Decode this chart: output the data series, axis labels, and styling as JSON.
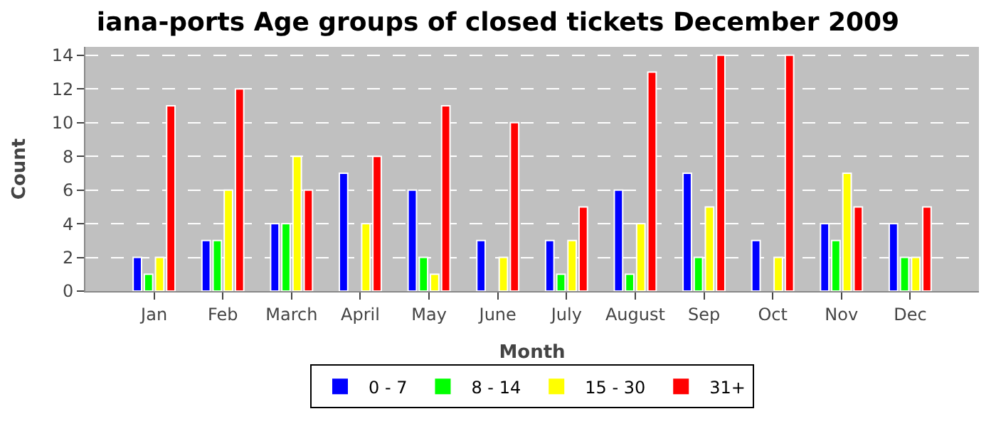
{
  "chart_data": {
    "type": "bar",
    "title": "iana-ports Age groups of closed tickets December 2009",
    "xlabel": "Month",
    "ylabel": "Count",
    "categories": [
      "Jan",
      "Feb",
      "March",
      "April",
      "May",
      "June",
      "July",
      "August",
      "Sep",
      "Oct",
      "Nov",
      "Dec"
    ],
    "series": [
      {
        "name": "0 - 7",
        "color": "#0000ff",
        "values": [
          2,
          3,
          4,
          7,
          6,
          3,
          3,
          6,
          7,
          3,
          4,
          4
        ]
      },
      {
        "name": "8 - 14",
        "color": "#00ff00",
        "values": [
          1,
          3,
          4,
          0,
          2,
          0,
          1,
          1,
          2,
          0,
          3,
          2
        ]
      },
      {
        "name": "15 - 30",
        "color": "#ffff00",
        "values": [
          2,
          6,
          8,
          4,
          1,
          2,
          3,
          4,
          5,
          2,
          7,
          2
        ]
      },
      {
        "name": "31+",
        "color": "#ff0000",
        "values": [
          11,
          12,
          6,
          8,
          11,
          10,
          5,
          13,
          14,
          14,
          5,
          5
        ]
      }
    ],
    "ylim": [
      0,
      14.5
    ],
    "yticks": [
      0,
      2,
      4,
      6,
      8,
      10,
      12,
      14
    ],
    "grid": "y",
    "legend": "bottom"
  }
}
